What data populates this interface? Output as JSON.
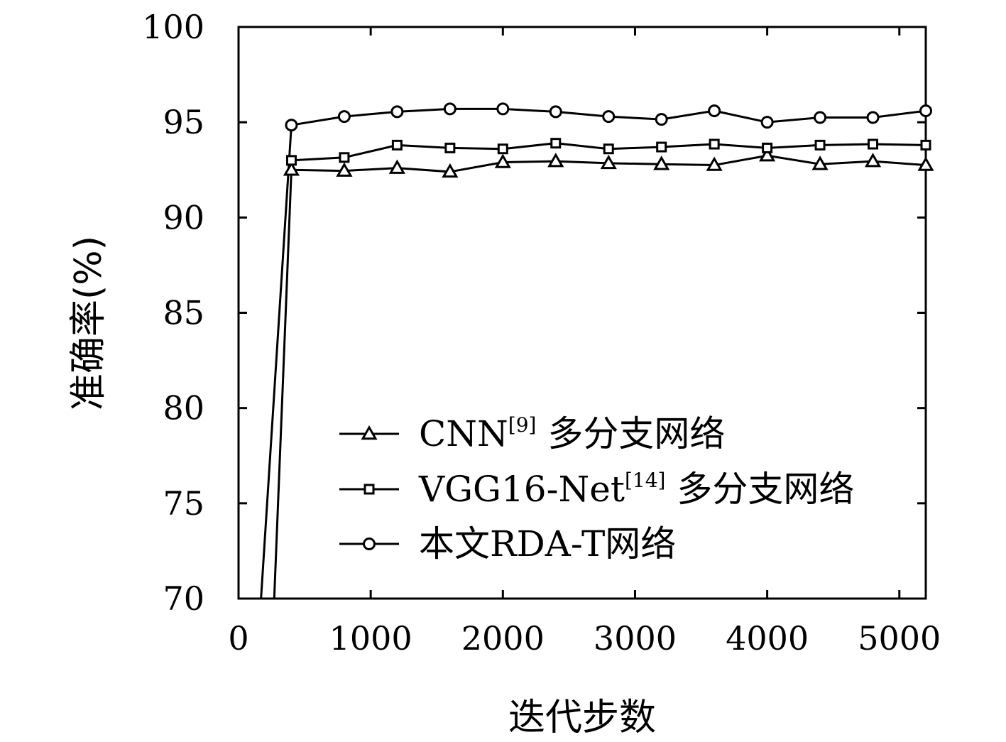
{
  "chart_data": {
    "type": "line",
    "title": "",
    "xlabel": "迭代步数",
    "ylabel": "准确率(%)",
    "xlim": [
      0,
      5200
    ],
    "ylim": [
      70,
      100
    ],
    "xticks": [
      0,
      1000,
      2000,
      3000,
      4000,
      5000
    ],
    "yticks": [
      70,
      75,
      80,
      85,
      90,
      95,
      100
    ],
    "grid": false,
    "legend_position": "lower-right",
    "series": [
      {
        "name": "CNN[9] 多分支网络",
        "name_main": "CNN",
        "name_ref": "[9]",
        "name_suffix": " 多分支网络",
        "marker": "triangle",
        "x": [
          400,
          800,
          1200,
          1600,
          2000,
          2400,
          2800,
          3200,
          3600,
          4000,
          4400,
          4800,
          5200
        ],
        "y": [
          92.5,
          92.45,
          92.6,
          92.4,
          92.9,
          92.95,
          92.85,
          92.8,
          92.75,
          93.25,
          92.8,
          92.95,
          92.75
        ]
      },
      {
        "name": "VGG16-Net[14] 多分支网络",
        "name_main": "VGG16-Net",
        "name_ref": "[14]",
        "name_suffix": " 多分支网络",
        "marker": "square",
        "x": [
          400,
          800,
          1200,
          1600,
          2000,
          2400,
          2800,
          3200,
          3600,
          4000,
          4400,
          4800,
          5200
        ],
        "y": [
          93.0,
          93.15,
          93.8,
          93.65,
          93.6,
          93.9,
          93.6,
          93.7,
          93.85,
          93.65,
          93.8,
          93.85,
          93.8
        ]
      },
      {
        "name": "本文RDA-T网络",
        "name_main": "本文RDA-T网络",
        "name_ref": "",
        "name_suffix": "",
        "marker": "circle",
        "x": [
          400,
          800,
          1200,
          1600,
          2000,
          2400,
          2800,
          3200,
          3600,
          4000,
          4400,
          4800,
          5200
        ],
        "y": [
          94.85,
          95.3,
          95.55,
          95.7,
          95.7,
          95.55,
          95.3,
          95.15,
          95.6,
          95.0,
          95.25,
          95.25,
          95.6
        ]
      }
    ],
    "initial_drop_lines": [
      {
        "x": [
          170,
          400
        ],
        "y": [
          70,
          94.85
        ]
      },
      {
        "x": [
          270,
          400
        ],
        "y": [
          70,
          92.5
        ]
      }
    ]
  }
}
